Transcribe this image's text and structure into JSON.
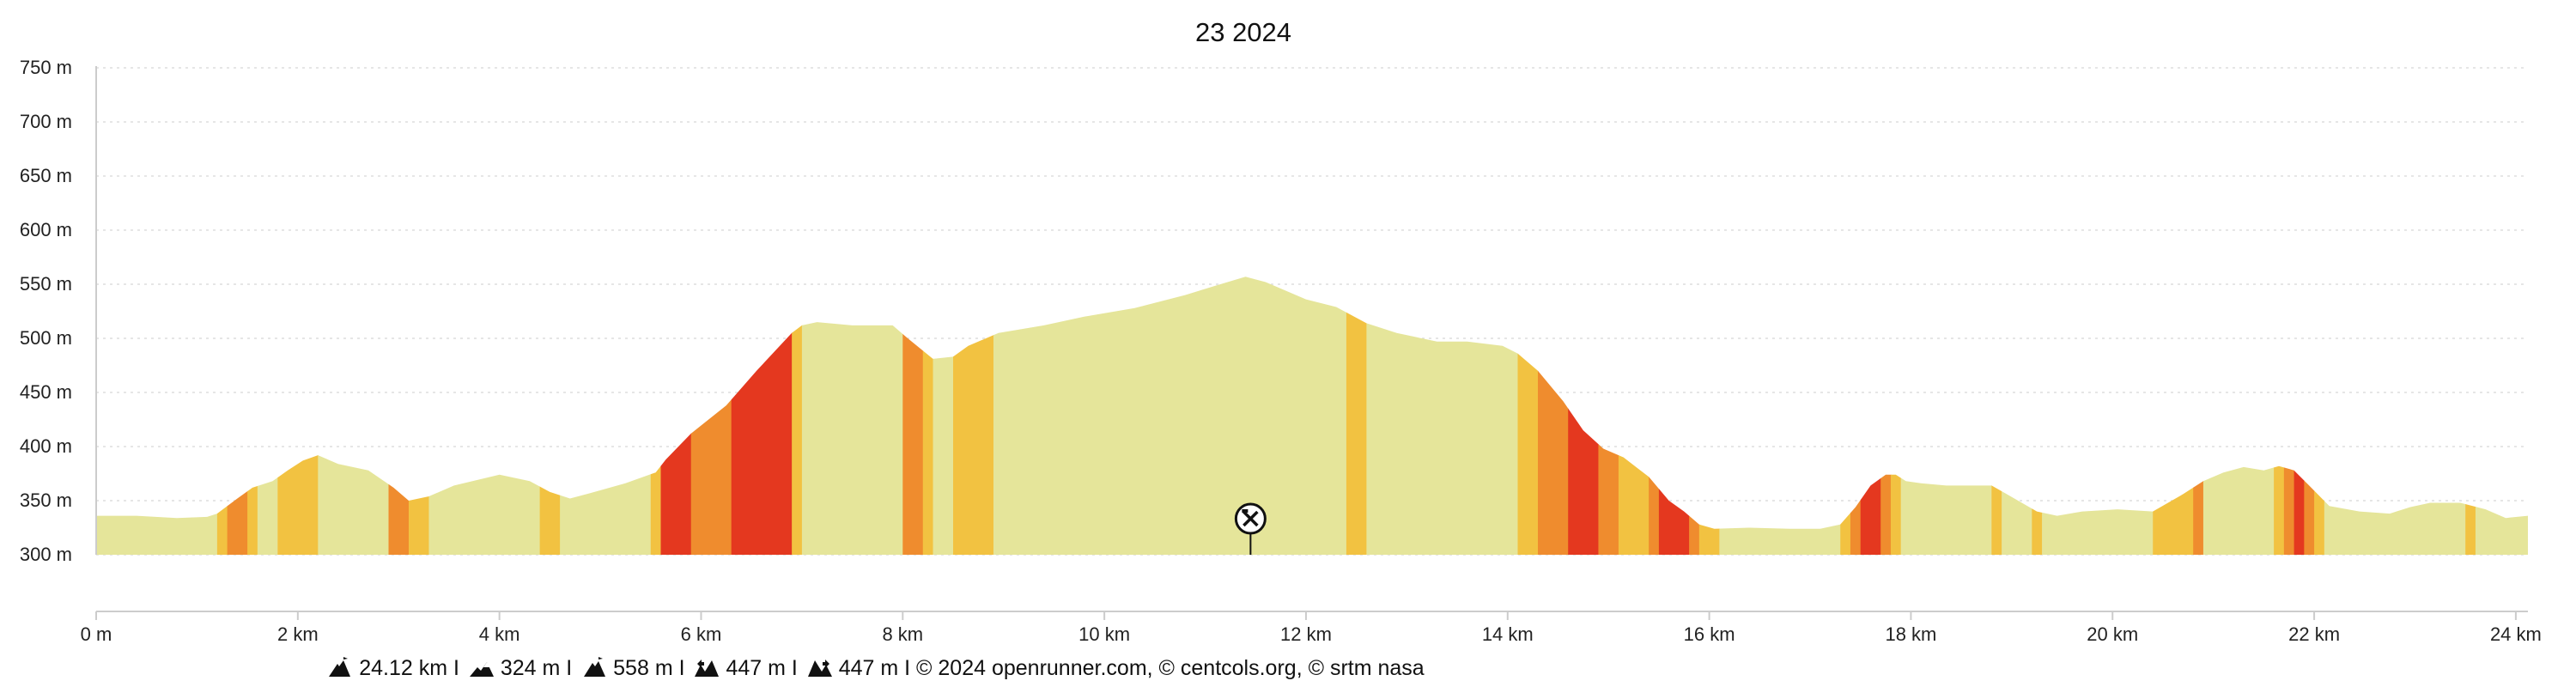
{
  "chart_data": {
    "type": "area",
    "title": "23 2024",
    "xlabel": "",
    "ylabel": "",
    "x_unit": "km",
    "y_unit": "m",
    "xlim": [
      0,
      24.12
    ],
    "ylim": [
      300,
      750
    ],
    "grid": true,
    "x_ticks": [
      "0 m",
      "2 km",
      "4 km",
      "6 km",
      "8 km",
      "10 km",
      "12 km",
      "14 km",
      "16 km",
      "18 km",
      "20 km",
      "22 km",
      "24 km"
    ],
    "y_ticks": [
      "750 m",
      "700 m",
      "650 m",
      "600 m",
      "550 m",
      "500 m",
      "450 m",
      "400 m",
      "350 m",
      "300 m"
    ],
    "profile": {
      "x": [
        0,
        0.4,
        0.8,
        1.1,
        1.2,
        1.4,
        1.55,
        1.75,
        1.9,
        2.05,
        2.2,
        2.4,
        2.7,
        2.95,
        3.1,
        3.3,
        3.55,
        4.0,
        4.3,
        4.5,
        4.7,
        4.9,
        5.25,
        5.55,
        5.65,
        5.9,
        6.25,
        6.55,
        6.9,
        7.0,
        7.15,
        7.5,
        7.9,
        8.05,
        8.3,
        8.5,
        8.65,
        8.95,
        9.4,
        9.8,
        10.3,
        10.8,
        11.15,
        11.4,
        11.6,
        12.0,
        12.3,
        12.6,
        12.9,
        13.3,
        13.6,
        13.95,
        14.1,
        14.3,
        14.55,
        14.75,
        14.95,
        15.15,
        15.4,
        15.6,
        15.75,
        15.9,
        16.05,
        16.4,
        16.8,
        17.1,
        17.3,
        17.45,
        17.6,
        17.75,
        17.85,
        17.95,
        18.1,
        18.35,
        18.55,
        18.8,
        18.95,
        19.25,
        19.45,
        19.7,
        20.05,
        20.4,
        20.7,
        20.9,
        21.1,
        21.3,
        21.5,
        21.65,
        21.8,
        21.95,
        22.15,
        22.45,
        22.75,
        22.95,
        23.15,
        23.45,
        23.7,
        23.9,
        24.12
      ],
      "y": [
        336,
        336,
        334,
        335,
        338,
        352,
        362,
        368,
        378,
        387,
        392,
        384,
        378,
        362,
        350,
        354,
        364,
        374,
        368,
        358,
        352,
        357,
        366,
        376,
        388,
        412,
        438,
        470,
        505,
        512,
        515,
        512,
        512,
        500,
        481,
        483,
        493,
        505,
        512,
        520,
        528,
        540,
        550,
        557,
        552,
        536,
        529,
        514,
        505,
        497,
        497,
        493,
        486,
        470,
        442,
        415,
        398,
        390,
        372,
        350,
        340,
        328,
        324,
        325,
        324,
        324,
        328,
        344,
        364,
        374,
        374,
        368,
        366,
        364,
        364,
        364,
        356,
        340,
        336,
        340,
        342,
        340,
        356,
        368,
        376,
        381,
        378,
        382,
        378,
        364,
        345,
        340,
        338,
        344,
        348,
        348,
        342,
        334,
        336
      ]
    },
    "slope_bands": [
      {
        "from": 0,
        "to": 1.2,
        "class": "flat"
      },
      {
        "from": 1.2,
        "to": 1.3,
        "class": "moderate"
      },
      {
        "from": 1.3,
        "to": 1.5,
        "class": "steep"
      },
      {
        "from": 1.5,
        "to": 1.6,
        "class": "moderate"
      },
      {
        "from": 1.6,
        "to": 1.8,
        "class": "flat"
      },
      {
        "from": 1.8,
        "to": 2.2,
        "class": "moderate"
      },
      {
        "from": 2.2,
        "to": 2.9,
        "class": "flat"
      },
      {
        "from": 2.9,
        "to": 3.1,
        "class": "steep"
      },
      {
        "from": 3.1,
        "to": 3.3,
        "class": "moderate"
      },
      {
        "from": 3.3,
        "to": 4.4,
        "class": "flat"
      },
      {
        "from": 4.4,
        "to": 4.6,
        "class": "moderate"
      },
      {
        "from": 4.6,
        "to": 5.5,
        "class": "flat"
      },
      {
        "from": 5.5,
        "to": 5.6,
        "class": "moderate"
      },
      {
        "from": 5.6,
        "to": 5.9,
        "class": "very-steep"
      },
      {
        "from": 5.9,
        "to": 6.3,
        "class": "steep"
      },
      {
        "from": 6.3,
        "to": 6.9,
        "class": "very-steep"
      },
      {
        "from": 6.9,
        "to": 7.0,
        "class": "moderate"
      },
      {
        "from": 7.0,
        "to": 8.0,
        "class": "flat"
      },
      {
        "from": 8.0,
        "to": 8.2,
        "class": "steep"
      },
      {
        "from": 8.2,
        "to": 8.3,
        "class": "moderate"
      },
      {
        "from": 8.3,
        "to": 8.5,
        "class": "flat"
      },
      {
        "from": 8.5,
        "to": 8.9,
        "class": "moderate"
      },
      {
        "from": 8.9,
        "to": 12.4,
        "class": "flat"
      },
      {
        "from": 12.4,
        "to": 12.6,
        "class": "moderate"
      },
      {
        "from": 12.6,
        "to": 14.1,
        "class": "flat"
      },
      {
        "from": 14.1,
        "to": 14.3,
        "class": "moderate"
      },
      {
        "from": 14.3,
        "to": 14.6,
        "class": "steep"
      },
      {
        "from": 14.6,
        "to": 14.9,
        "class": "very-steep"
      },
      {
        "from": 14.9,
        "to": 15.1,
        "class": "steep"
      },
      {
        "from": 15.1,
        "to": 15.4,
        "class": "moderate"
      },
      {
        "from": 15.4,
        "to": 15.5,
        "class": "steep"
      },
      {
        "from": 15.5,
        "to": 15.8,
        "class": "very-steep"
      },
      {
        "from": 15.8,
        "to": 15.9,
        "class": "steep"
      },
      {
        "from": 15.9,
        "to": 16.1,
        "class": "moderate"
      },
      {
        "from": 16.1,
        "to": 17.3,
        "class": "flat"
      },
      {
        "from": 17.3,
        "to": 17.4,
        "class": "moderate"
      },
      {
        "from": 17.4,
        "to": 17.5,
        "class": "steep"
      },
      {
        "from": 17.5,
        "to": 17.7,
        "class": "very-steep"
      },
      {
        "from": 17.7,
        "to": 17.8,
        "class": "steep"
      },
      {
        "from": 17.8,
        "to": 17.9,
        "class": "moderate"
      },
      {
        "from": 17.9,
        "to": 18.8,
        "class": "flat"
      },
      {
        "from": 18.8,
        "to": 18.9,
        "class": "moderate"
      },
      {
        "from": 18.9,
        "to": 19.2,
        "class": "flat"
      },
      {
        "from": 19.2,
        "to": 19.3,
        "class": "moderate"
      },
      {
        "from": 19.3,
        "to": 20.4,
        "class": "flat"
      },
      {
        "from": 20.4,
        "to": 20.8,
        "class": "moderate"
      },
      {
        "from": 20.8,
        "to": 20.9,
        "class": "steep"
      },
      {
        "from": 20.9,
        "to": 21.6,
        "class": "flat"
      },
      {
        "from": 21.6,
        "to": 21.7,
        "class": "moderate"
      },
      {
        "from": 21.7,
        "to": 21.8,
        "class": "steep"
      },
      {
        "from": 21.8,
        "to": 21.9,
        "class": "very-steep"
      },
      {
        "from": 21.9,
        "to": 22.0,
        "class": "steep"
      },
      {
        "from": 22.0,
        "to": 22.1,
        "class": "moderate"
      },
      {
        "from": 22.1,
        "to": 23.5,
        "class": "flat"
      },
      {
        "from": 23.5,
        "to": 23.6,
        "class": "moderate"
      },
      {
        "from": 23.6,
        "to": 24.12,
        "class": "flat"
      }
    ],
    "marker": {
      "x": 11.45,
      "icon": "crossed-tools-icon"
    }
  },
  "colors": {
    "flat": "#e5e59a",
    "moderate": "#f2c241",
    "steep": "#ef8c2e",
    "very-steep": "#e4381f",
    "grid": "#dddddd",
    "axis": "#cccccc",
    "text": "#111111"
  },
  "footer": {
    "distance": "24.12 km I",
    "elevation_gain": "324 m I",
    "max_altitude": "558 m I",
    "ascent": "447 m I",
    "descent": "447 m I © 2024 openrunner.com, © centcols.org, © srtm nasa",
    "icons": [
      "max-altitude-icon",
      "elevation-gain-icon",
      "summit-icon",
      "ascent-icon",
      "descent-icon"
    ]
  }
}
